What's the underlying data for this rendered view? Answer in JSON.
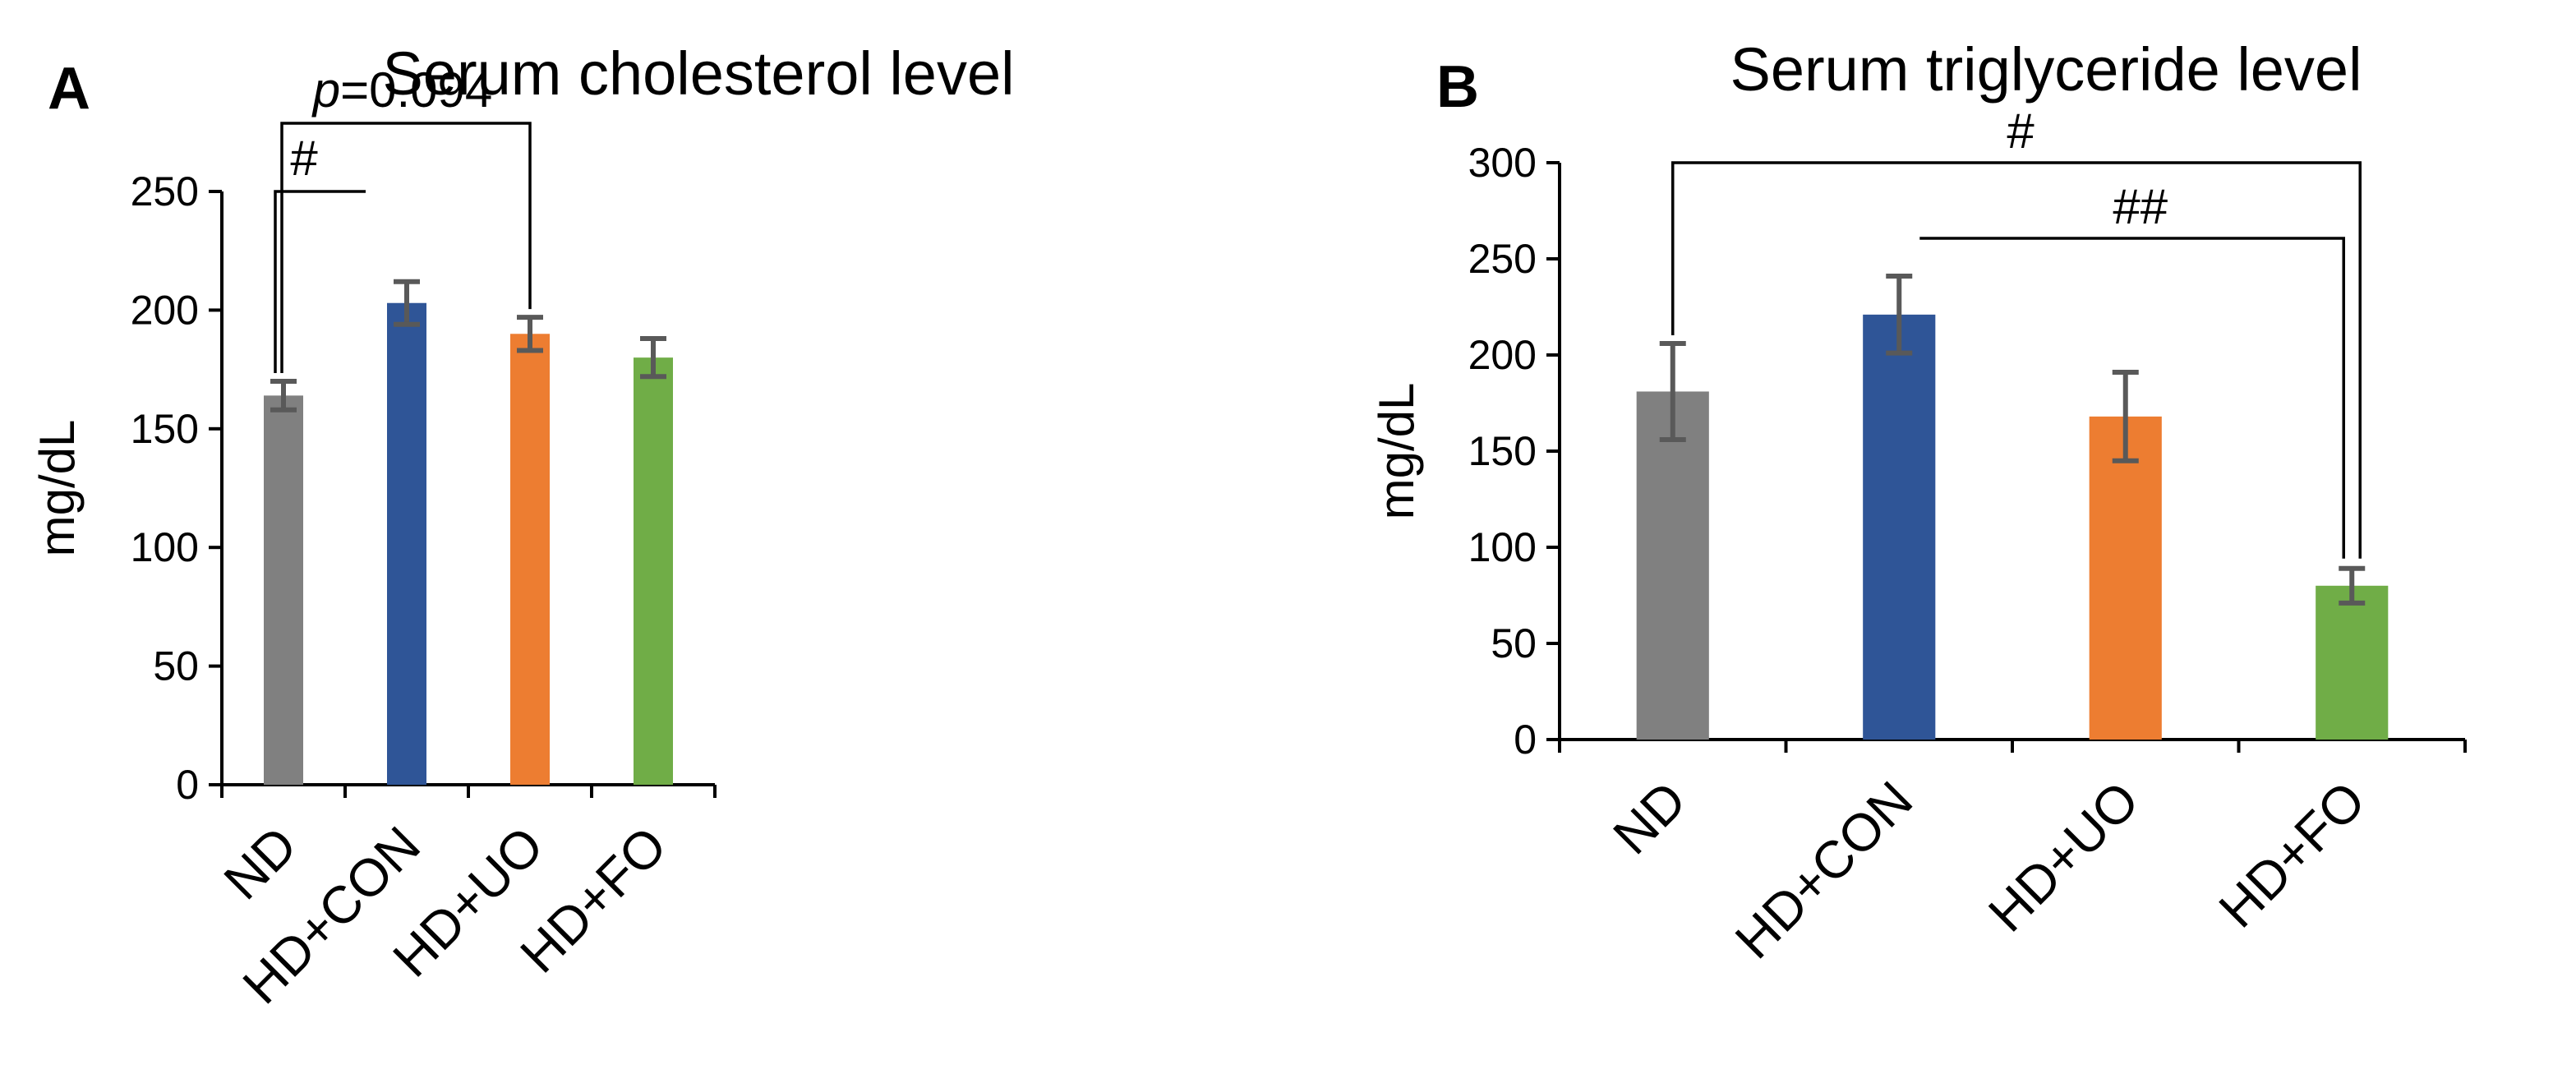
{
  "chart_data": [
    {
      "panel": "A",
      "type": "bar",
      "title": "Serum cholesterol level",
      "xlabel": "",
      "ylabel": "mg/dL",
      "ylim": [
        0,
        250
      ],
      "yticks": [
        0,
        50,
        100,
        150,
        200,
        250
      ],
      "categories": [
        "ND",
        "HD+CON",
        "HD+UO",
        "HD+FO"
      ],
      "values": [
        164,
        203,
        190,
        180
      ],
      "errors": [
        6,
        9,
        7,
        8
      ],
      "colors": [
        "#808080",
        "#2f5597",
        "#ed7d31",
        "#70ad47"
      ],
      "annotations": [
        {
          "label": "#",
          "italic_prefix": "",
          "from": 0,
          "to": 1,
          "level": 1
        },
        {
          "label": "=0.094",
          "italic_prefix": "p",
          "from": 0,
          "to": 2,
          "level": 2
        }
      ]
    },
    {
      "panel": "B",
      "type": "bar",
      "title": "Serum triglyceride level",
      "xlabel": "",
      "ylabel": "mg/dL",
      "ylim": [
        0,
        300
      ],
      "yticks": [
        0,
        50,
        100,
        150,
        200,
        250,
        300
      ],
      "categories": [
        "ND",
        "HD+CON",
        "HD+UO",
        "HD+FO"
      ],
      "values": [
        181,
        221,
        168,
        80
      ],
      "errors": [
        25,
        20,
        23,
        9
      ],
      "colors": [
        "#808080",
        "#2f5597",
        "#ed7d31",
        "#70ad47"
      ],
      "annotations": [
        {
          "label": "#",
          "italic_prefix": "",
          "from": 0,
          "to": 3,
          "level": 2
        },
        {
          "label": "##",
          "italic_prefix": "",
          "from": 1,
          "to": 3,
          "level": 1
        }
      ]
    }
  ]
}
